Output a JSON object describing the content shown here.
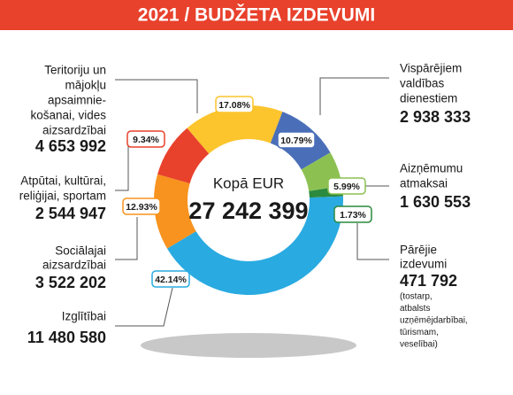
{
  "chart_data": {
    "type": "donut",
    "title": "2021 / BUDŽETA IZDEVUMI",
    "center_label": "Kopā EUR",
    "total": 27242399,
    "total_label": "27 242 399",
    "labels": [
      [
        "Vispārējiem",
        "valdības",
        "dienestiem"
      ],
      [
        "Aizņēmumu",
        "atmaksai"
      ],
      [
        "Pārējie",
        "izdevumi"
      ],
      [
        "Izglītībai"
      ],
      [
        "Sociālajai",
        "aizsardzībai"
      ],
      [
        "Atpūtai, kultūrai,",
        "reliģijai, sportam"
      ],
      [
        "Teritoriju un",
        "mājokļu",
        "apsaimnie-",
        "košanai, vides",
        "aizsardzībai"
      ]
    ],
    "values": [
      10.79,
      5.99,
      1.73,
      42.14,
      12.93,
      9.34,
      17.08
    ],
    "value_labels": [
      "10.79%",
      "5.99%",
      "1.73%",
      "42.14%",
      "12.93%",
      "9.34%",
      "17.08%"
    ],
    "amounts": [
      2938333,
      1630553,
      471792,
      11480580,
      3522202,
      2544947,
      4653992
    ],
    "amount_labels": [
      "2 938 333",
      "1 630 553",
      "471 792",
      "11 480 580",
      "3 522 202",
      "2 544 947",
      "4 653 992"
    ],
    "colors": [
      "#4a6fb8",
      "#8cc152",
      "#2b8a3e",
      "#29aae1",
      "#f7931e",
      "#e8412c",
      "#fcc42d"
    ],
    "note_lines": [
      "(tostarp,",
      "atbalsts",
      "uzņēmējdarbībai,",
      "tūrismam,",
      "veselībai)"
    ]
  }
}
